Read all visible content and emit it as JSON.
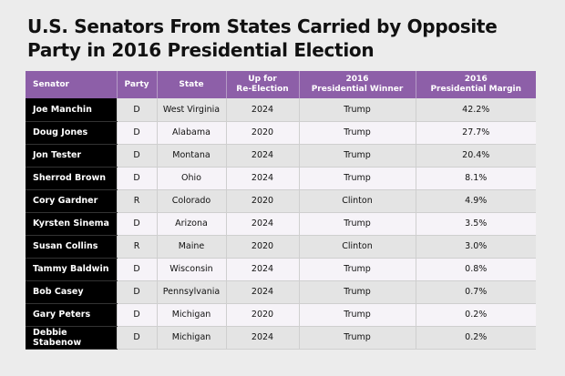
{
  "title": "U.S. Senators From States Carried by Opposite Party in 2016 Presidential Election",
  "headers": {
    "senator": "Senator",
    "party": "Party",
    "state": "State",
    "reelection_line1": "Up for",
    "reelection_line2": "Re-Election",
    "winner_line1": "2016",
    "winner_line2": "Presidential Winner",
    "margin_line1": "2016",
    "margin_line2": "Presidential Margin"
  },
  "rows": [
    {
      "senator": "Joe Manchin",
      "party": "D",
      "state": "West Virginia",
      "reelection": "2024",
      "winner": "Trump",
      "margin": "42.2%"
    },
    {
      "senator": "Doug Jones",
      "party": "D",
      "state": "Alabama",
      "reelection": "2020",
      "winner": "Trump",
      "margin": "27.7%"
    },
    {
      "senator": "Jon Tester",
      "party": "D",
      "state": "Montana",
      "reelection": "2024",
      "winner": "Trump",
      "margin": "20.4%"
    },
    {
      "senator": "Sherrod Brown",
      "party": "D",
      "state": "Ohio",
      "reelection": "2024",
      "winner": "Trump",
      "margin": "8.1%"
    },
    {
      "senator": "Cory Gardner",
      "party": "R",
      "state": "Colorado",
      "reelection": "2020",
      "winner": "Clinton",
      "margin": "4.9%"
    },
    {
      "senator": "Kyrsten Sinema",
      "party": "D",
      "state": "Arizona",
      "reelection": "2024",
      "winner": "Trump",
      "margin": "3.5%"
    },
    {
      "senator": "Susan Collins",
      "party": "R",
      "state": "Maine",
      "reelection": "2020",
      "winner": "Clinton",
      "margin": "3.0%"
    },
    {
      "senator": "Tammy Baldwin",
      "party": "D",
      "state": "Wisconsin",
      "reelection": "2024",
      "winner": "Trump",
      "margin": "0.8%"
    },
    {
      "senator": "Bob Casey",
      "party": "D",
      "state": "Pennsylvania",
      "reelection": "2024",
      "winner": "Trump",
      "margin": "0.7%"
    },
    {
      "senator": "Gary Peters",
      "party": "D",
      "state": "Michigan",
      "reelection": "2020",
      "winner": "Trump",
      "margin": "0.2%"
    },
    {
      "senator": "Debbie Stabenow",
      "party": "D",
      "state": "Michigan",
      "reelection": "2024",
      "winner": "Trump",
      "margin": "0.2%"
    }
  ],
  "colors": {
    "header_purple": "#8d5fa8",
    "senator_cell": "#000000",
    "background": "#ececec"
  }
}
